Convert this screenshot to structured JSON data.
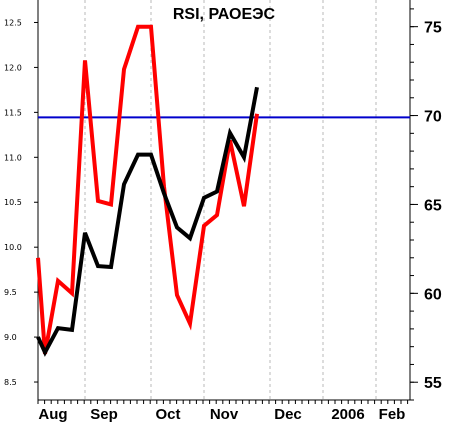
{
  "chart_data": {
    "type": "line",
    "title": "RSI, РАОЕЭС",
    "grid": "vertical-dashed",
    "x_tick_labels": [
      "Aug",
      "Sep",
      "Oct",
      "Nov",
      "Dec",
      "2006",
      "Feb"
    ],
    "left_axis": {
      "ticks": [
        "12.5",
        "12.0",
        "11.5",
        "11.0",
        "10.5",
        "10.0",
        "9.5",
        "9.0",
        "8.5"
      ],
      "ylim": [
        8.3,
        12.75
      ]
    },
    "right_axis": {
      "ticks": [
        "75",
        "70",
        "65",
        "60",
        "55"
      ],
      "ylim": [
        54,
        76.5
      ]
    },
    "reference_line": {
      "axis": "right",
      "value": 69.9,
      "color": "#0000cc"
    },
    "x": [
      "Aug 1",
      "Aug 3",
      "Aug 8",
      "Aug 15",
      "Aug 22",
      "Aug 29",
      "Sep 5",
      "Sep 12",
      "Sep 19",
      "Sep 26",
      "Oct 3",
      "Oct 10",
      "Oct 17",
      "Oct 24",
      "Oct 31",
      "Nov 7",
      "Nov 14",
      "Nov 21",
      "Nov 28"
    ],
    "series": [
      {
        "axis": "right",
        "color": "#ff0000",
        "values": [
          62,
          56.6,
          60.7,
          60.0,
          73.1,
          65.2,
          65.0,
          72.6,
          75.0,
          75.0,
          66.0,
          59.9,
          58.3,
          63.8,
          64.4,
          68.6,
          64.9,
          70.1,
          null
        ]
      },
      {
        "axis": "left",
        "color": "#000000",
        "values": [
          9.0,
          8.83,
          9.1,
          9.08,
          10.16,
          9.79,
          9.78,
          10.7,
          11.03,
          11.03,
          10.6,
          10.22,
          10.1,
          10.55,
          10.62,
          11.27,
          11.0,
          11.78,
          null
        ]
      }
    ]
  }
}
